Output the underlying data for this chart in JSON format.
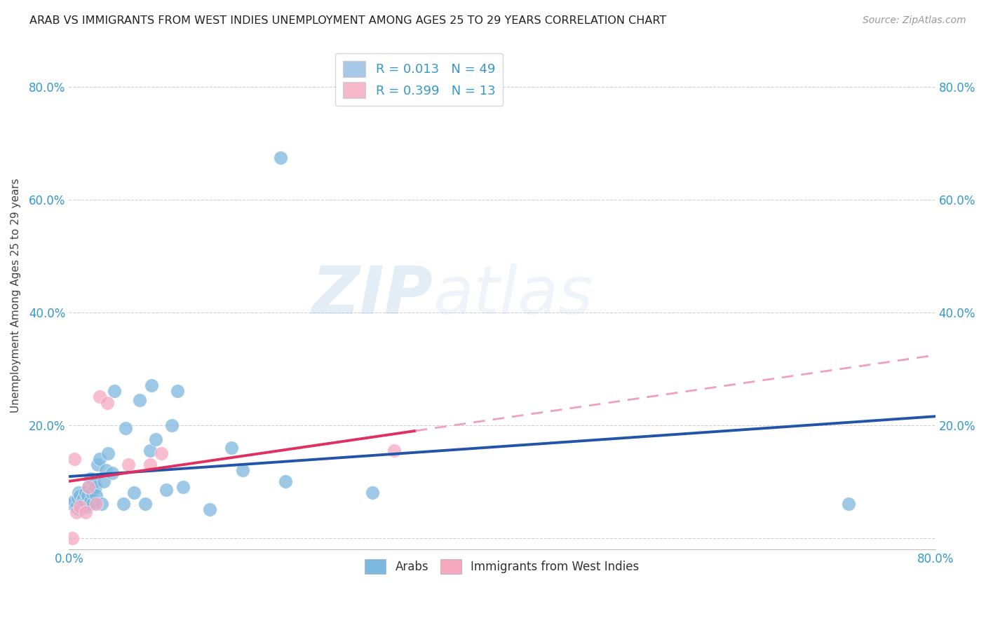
{
  "title": "ARAB VS IMMIGRANTS FROM WEST INDIES UNEMPLOYMENT AMONG AGES 25 TO 29 YEARS CORRELATION CHART",
  "source": "Source: ZipAtlas.com",
  "ylabel": "Unemployment Among Ages 25 to 29 years",
  "xlim": [
    0.0,
    0.8
  ],
  "ylim": [
    -0.02,
    0.88
  ],
  "x_ticks": [
    0.0,
    0.1,
    0.2,
    0.3,
    0.4,
    0.5,
    0.6,
    0.7,
    0.8
  ],
  "x_tick_labels": [
    "0.0%",
    "",
    "",
    "",
    "",
    "",
    "",
    "",
    "80.0%"
  ],
  "y_ticks": [
    0.0,
    0.2,
    0.4,
    0.6,
    0.8
  ],
  "y_tick_labels": [
    "",
    "20.0%",
    "40.0%",
    "60.0%",
    "80.0%"
  ],
  "legend_entries": [
    {
      "label": "R = 0.013   N = 49",
      "color": "#a8c8e8"
    },
    {
      "label": "R = 0.399   N = 13",
      "color": "#f5b8cb"
    }
  ],
  "arab_color": "#7db8e0",
  "wi_color": "#f5a8c0",
  "arab_line_color": "#2255aa",
  "wi_line_color": "#e03060",
  "wi_dashed_color": "#f0a0c0",
  "watermark_zip": "ZIP",
  "watermark_atlas": "atlas",
  "arab_x": [
    0.003,
    0.005,
    0.007,
    0.008,
    0.009,
    0.01,
    0.01,
    0.012,
    0.013,
    0.014,
    0.015,
    0.016,
    0.017,
    0.018,
    0.019,
    0.02,
    0.02,
    0.021,
    0.022,
    0.023,
    0.024,
    0.025,
    0.026,
    0.028,
    0.03,
    0.032,
    0.034,
    0.036,
    0.04,
    0.042,
    0.05,
    0.052,
    0.06,
    0.065,
    0.07,
    0.075,
    0.076,
    0.08,
    0.09,
    0.095,
    0.1,
    0.105,
    0.13,
    0.15,
    0.16,
    0.195,
    0.2,
    0.28,
    0.72
  ],
  "arab_y": [
    0.06,
    0.065,
    0.055,
    0.07,
    0.08,
    0.05,
    0.075,
    0.065,
    0.07,
    0.06,
    0.08,
    0.055,
    0.075,
    0.09,
    0.06,
    0.065,
    0.105,
    0.08,
    0.06,
    0.1,
    0.09,
    0.075,
    0.13,
    0.14,
    0.06,
    0.1,
    0.12,
    0.15,
    0.115,
    0.26,
    0.06,
    0.195,
    0.08,
    0.245,
    0.06,
    0.155,
    0.27,
    0.175,
    0.085,
    0.2,
    0.26,
    0.09,
    0.05,
    0.16,
    0.12,
    0.675,
    0.1,
    0.08,
    0.06
  ],
  "wi_x": [
    0.003,
    0.005,
    0.007,
    0.01,
    0.015,
    0.018,
    0.025,
    0.028,
    0.035,
    0.055,
    0.075,
    0.085,
    0.3
  ],
  "wi_y": [
    0.0,
    0.14,
    0.045,
    0.055,
    0.045,
    0.09,
    0.06,
    0.25,
    0.24,
    0.13,
    0.13,
    0.15,
    0.155
  ]
}
